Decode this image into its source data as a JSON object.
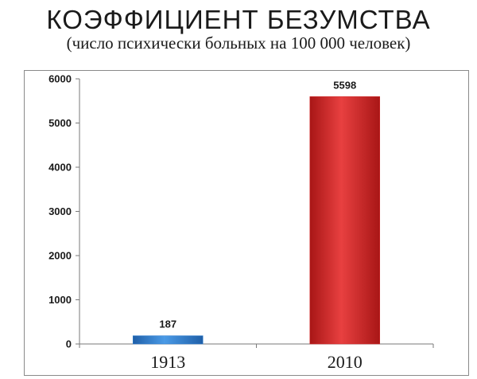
{
  "title": "КОЭФФИЦИЕНТ БЕЗУМСТВА",
  "subtitle": "(число психически больных на 100 000 человек)",
  "colors": {
    "bar_1913": "#2f7fd0",
    "bar_2010": "#d32a2a",
    "axis": "#7a7a7a",
    "text": "#1a1a1a"
  },
  "chart_data": {
    "type": "bar",
    "title": "КОЭФФИЦИЕНТ БЕЗУМСТВА",
    "subtitle": "(число психически больных на 100 000 человек)",
    "categories": [
      "1913",
      "2010"
    ],
    "values": [
      187,
      5598
    ],
    "data_labels": [
      "187",
      "5598"
    ],
    "xlabel": "",
    "ylabel": "",
    "ylim": [
      0,
      6000
    ],
    "yticks": [
      0,
      1000,
      2000,
      3000,
      4000,
      5000,
      6000
    ],
    "grid": false,
    "legend": "none"
  }
}
